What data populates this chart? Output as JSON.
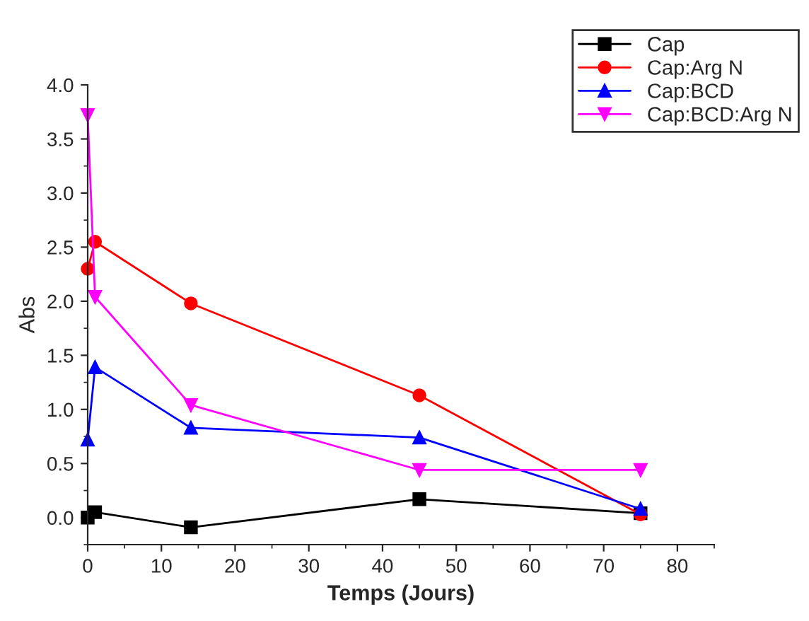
{
  "chart_data": {
    "type": "line",
    "xlabel": "Temps (Jours)",
    "ylabel": "Abs",
    "x": [
      0,
      1,
      14,
      45,
      75
    ],
    "series": [
      {
        "name": "Cap",
        "color": "#000000",
        "marker": "square",
        "values": [
          0.0,
          0.05,
          -0.09,
          0.17,
          0.04
        ]
      },
      {
        "name": "Cap:Arg N",
        "color": "#ff0000",
        "marker": "circle",
        "values": [
          2.3,
          2.55,
          1.98,
          1.13,
          0.03
        ]
      },
      {
        "name": "Cap:BCD",
        "color": "#0000ff",
        "marker": "triangle",
        "values": [
          0.72,
          1.39,
          0.83,
          0.74,
          0.08
        ]
      },
      {
        "name": "Cap:BCD:Arg N",
        "color": "#ff00ff",
        "marker": "triangle_down",
        "values": [
          3.72,
          2.04,
          1.04,
          0.44,
          0.44
        ]
      }
    ],
    "xlim": [
      0,
      85
    ],
    "xticks": [
      0,
      10,
      20,
      30,
      40,
      50,
      60,
      70,
      80
    ],
    "ylim": [
      -0.25,
      4.0
    ],
    "yticks": [
      {
        "value": 0,
        "label": "0.0"
      },
      {
        "value": 0.5,
        "label": "0.5"
      },
      {
        "value": 1,
        "label": "1.0"
      },
      {
        "value": 1.5,
        "label": "1.5"
      },
      {
        "value": 2,
        "label": "2.0"
      },
      {
        "value": 2.5,
        "label": "2.5"
      },
      {
        "value": 3,
        "label": "3.0"
      },
      {
        "value": 3.5,
        "label": "3.5"
      },
      {
        "value": 4,
        "label": "4.0"
      }
    ],
    "legend": "top right",
    "grid": false,
    "line_style": "solid"
  }
}
